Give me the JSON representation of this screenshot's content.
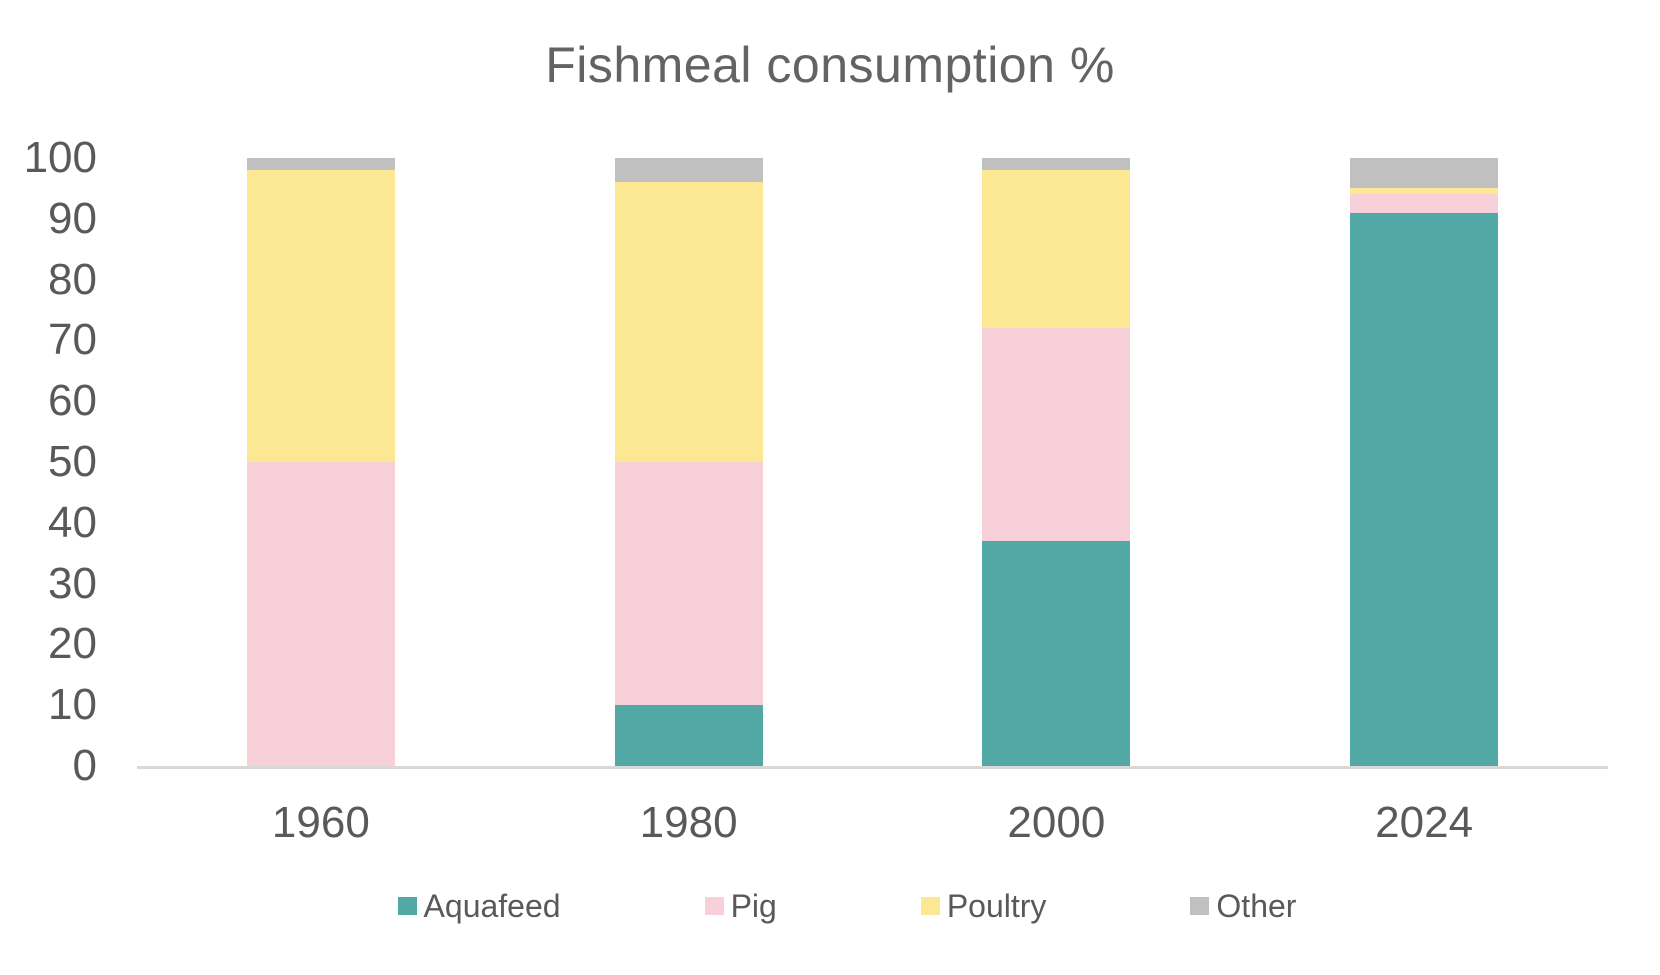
{
  "chart_data": {
    "type": "bar",
    "stacked": true,
    "title": "Fishmeal consumption %",
    "categories": [
      "1960",
      "1980",
      "2000",
      "2024"
    ],
    "series": [
      {
        "name": "Aquafeed",
        "color": "#51A8A4",
        "values": [
          0,
          10,
          37,
          91
        ]
      },
      {
        "name": "Pig",
        "color": "#F7D0DA",
        "values": [
          50,
          40,
          35,
          3
        ]
      },
      {
        "name": "Poultry",
        "color": "#FCE892",
        "values": [
          48,
          46,
          26,
          1
        ]
      },
      {
        "name": "Other",
        "color": "#C0C0C0",
        "values": [
          2,
          4,
          2,
          5
        ]
      }
    ],
    "ylim": [
      0,
      100
    ],
    "y_ticks": [
      0,
      10,
      20,
      30,
      40,
      50,
      60,
      70,
      80,
      90,
      100
    ],
    "xlabel": "",
    "ylabel": "",
    "grid": false,
    "legend_position": "bottom"
  },
  "theme": {
    "background": "#FFFFFF",
    "title_color": "#636363",
    "tick_label_color": "#595959",
    "legend_text_color": "#595959",
    "axis_line_color": "#D9D9D9"
  }
}
